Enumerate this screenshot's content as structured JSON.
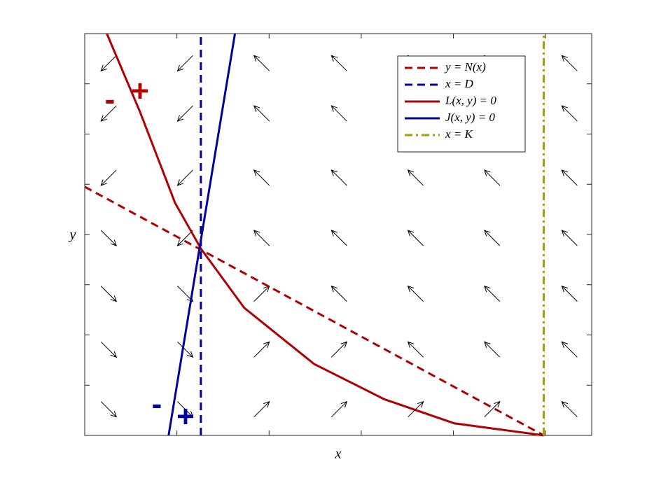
{
  "chart_data": {
    "type": "line",
    "xlabel": "x",
    "ylabel": "y",
    "xlim": [
      0,
      5.5
    ],
    "ylim": [
      0,
      8
    ],
    "xticks": [
      1,
      2,
      3,
      4,
      5
    ],
    "yticks": [
      1,
      2,
      3,
      4,
      5,
      6,
      7
    ],
    "legend": "upper right",
    "series": [
      {
        "name": "y = N(x)",
        "color": "#b00000",
        "style": "dashed",
        "x": [
          0,
          4.98
        ],
        "values": [
          4.95,
          0
        ]
      },
      {
        "name": "x = D",
        "color": "#0000a0",
        "style": "dashed",
        "x": [
          1.26,
          1.26
        ],
        "values": [
          0,
          8
        ]
      },
      {
        "name": "L(x, y) = 0",
        "color": "#b00000",
        "style": "solid",
        "x": [
          0.24,
          0.6,
          0.98,
          1.26,
          1.73,
          2.49,
          3.25,
          4.01,
          4.98
        ],
        "values": [
          8,
          6.44,
          4.63,
          3.72,
          2.54,
          1.42,
          0.72,
          0.24,
          0
        ]
      },
      {
        "name": "J(x, y) = 0",
        "color": "#0000a0",
        "style": "solid",
        "x": [
          0.91,
          1.63
        ],
        "values": [
          0,
          8
        ]
      },
      {
        "name": "x = K",
        "color": "#a0a000",
        "style": "dashdot",
        "x": [
          4.98,
          4.98
        ],
        "values": [
          0,
          8
        ]
      }
    ],
    "annotations": [
      {
        "text": "-",
        "color": "#b00000"
      },
      {
        "text": "+",
        "color": "#b00000"
      },
      {
        "text": "-",
        "color": "#0000a0"
      },
      {
        "text": "+",
        "color": "#0000a0"
      }
    ],
    "quiver": {
      "x": [
        0.26,
        1.09,
        1.92,
        2.76,
        3.59,
        4.42,
        5.26,
        0.26,
        1.09,
        1.92,
        2.76,
        3.59,
        4.42,
        5.26,
        0.26,
        1.09,
        1.92,
        2.76,
        3.59,
        4.42,
        5.26,
        0.26,
        1.09,
        1.92,
        2.76,
        3.59,
        4.42,
        5.26,
        0.26,
        1.09,
        1.92,
        2.76,
        3.59,
        4.42,
        5.26,
        0.26,
        1.09,
        1.92,
        2.76,
        3.59,
        4.42,
        5.26,
        0.26,
        1.09,
        1.92,
        2.76,
        3.59,
        4.42,
        5.26
      ],
      "y": [
        7.41,
        7.41,
        7.41,
        7.41,
        7.41,
        7.41,
        7.41,
        6.41,
        6.41,
        6.41,
        6.41,
        6.41,
        6.41,
        6.41,
        5.13,
        5.13,
        5.13,
        5.13,
        5.13,
        5.13,
        5.13,
        3.93,
        3.93,
        3.93,
        3.93,
        3.93,
        3.93,
        3.93,
        2.82,
        2.82,
        2.82,
        2.82,
        2.82,
        2.82,
        2.82,
        1.71,
        1.71,
        1.71,
        1.71,
        1.71,
        1.71,
        1.71,
        0.52,
        0.52,
        0.52,
        0.52,
        0.52,
        0.52,
        0.52
      ],
      "u": [
        -1,
        -1,
        -1,
        -1,
        -1,
        -1,
        -1,
        -1,
        -1,
        -1,
        -1,
        -1,
        -1,
        -1,
        -1,
        -1,
        -1,
        -1,
        -1,
        -1,
        -1,
        1,
        -1,
        -1,
        -1,
        -1,
        -1,
        -1,
        1,
        1,
        1,
        -1,
        -1,
        -1,
        -1,
        1,
        1,
        1,
        1,
        -1,
        -1,
        -1,
        1,
        1,
        1,
        1,
        1,
        1,
        -1
      ],
      "v": [
        -1,
        -1,
        1,
        1,
        1,
        1,
        1,
        -1,
        -1,
        1,
        1,
        1,
        1,
        1,
        -1,
        -1,
        1,
        1,
        1,
        1,
        1,
        -1,
        -1,
        1,
        1,
        1,
        1,
        1,
        -1,
        -1,
        1,
        1,
        1,
        1,
        1,
        -1,
        -1,
        1,
        1,
        1,
        1,
        1,
        -1,
        -1,
        1,
        1,
        1,
        1,
        1
      ]
    }
  }
}
